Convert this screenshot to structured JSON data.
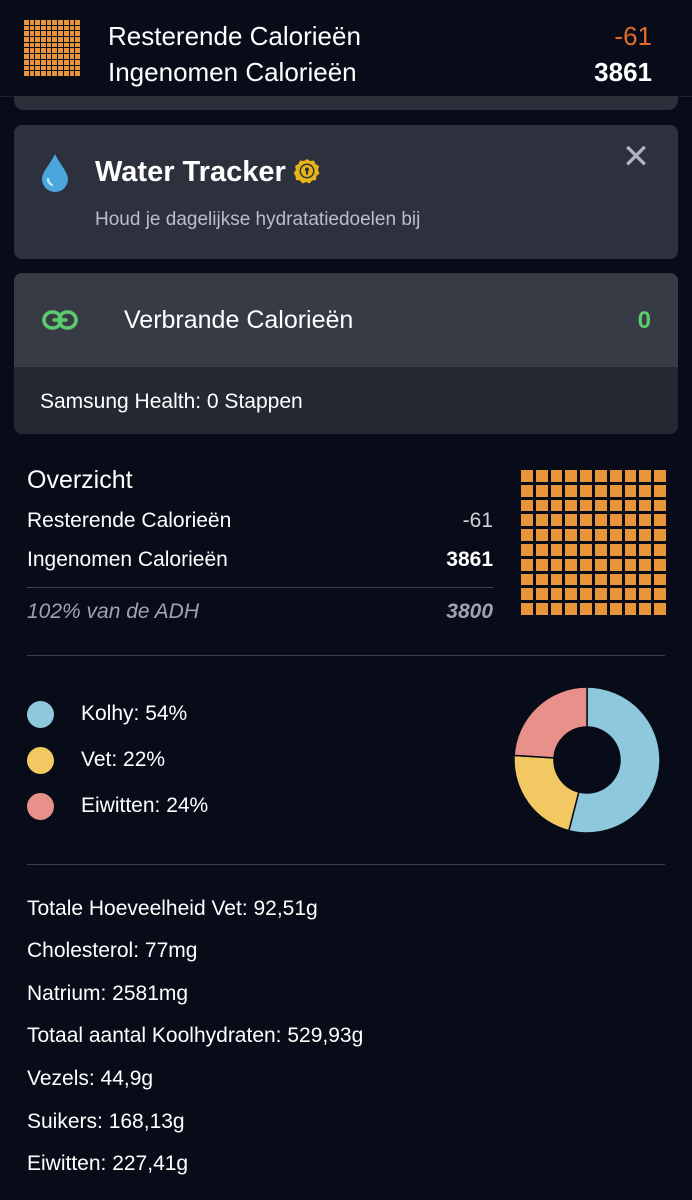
{
  "header": {
    "remaining_label": "Resterende Calorieën",
    "remaining_value": "-61",
    "consumed_label": "Ingenomen Calorieën",
    "consumed_value": "3861",
    "icon": "calorie-grid-icon",
    "accent_color": "#e8953b",
    "negative_color": "#e26a2c"
  },
  "water_tracker": {
    "title": "Water Tracker",
    "subtitle": "Houd je dagelijkse hydratatiedoelen bij",
    "icon": "water-drop-icon",
    "badge_icon": "premium-lock-icon",
    "close_icon": "close-icon"
  },
  "burned": {
    "title": "Verbrande Calorieën",
    "value": "0",
    "icon": "link-icon",
    "steps_text": "Samsung Health: 0 Stappen",
    "value_color": "#5ccb6b"
  },
  "overview": {
    "title": "Overzicht",
    "remaining_label": "Resterende Calorieën",
    "remaining_value": "-61",
    "consumed_label": "Ingenomen Calorieën",
    "consumed_value": "3861",
    "rda_label": "102% van de ADH",
    "rda_value": "3800",
    "grid_icon": "calorie-grid-icon"
  },
  "macros": {
    "items": [
      {
        "label": "Kolhy: 54%",
        "percent": 54,
        "color": "#8dc8dc"
      },
      {
        "label": "Vet: 22%",
        "percent": 22,
        "color": "#f2c862"
      },
      {
        "label": "Eiwitten: 24%",
        "percent": 24,
        "color": "#e8918a"
      }
    ]
  },
  "nutrients": [
    "Totale Hoeveelheid Vet: 92,51g",
    "Cholesterol: 77mg",
    "Natrium: 2581mg",
    "Totaal aantal Koolhydraten: 529,93g",
    "Vezels: 44,9g",
    "Suikers: 168,13g",
    "Eiwitten: 227,41g"
  ]
}
